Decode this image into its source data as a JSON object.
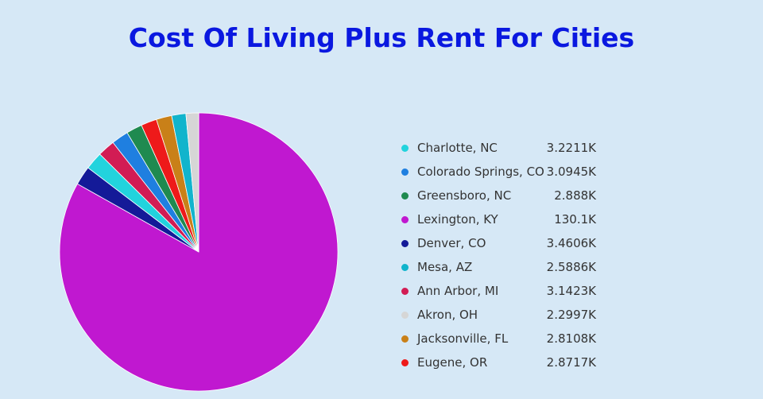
{
  "chart_data": {
    "type": "pie",
    "title": "Cost Of Living Plus Rent For Cities",
    "legend_position": "right",
    "slices": [
      {
        "label": "Charlotte, NC",
        "value": 3221.1,
        "display": "3.2211K",
        "color": "#22d3dd"
      },
      {
        "label": "Colorado Springs, CO",
        "value": 3094.5,
        "display": "3.0945K",
        "color": "#1f7fe0"
      },
      {
        "label": "Greensboro, NC",
        "value": 2888,
        "display": "2.888K",
        "color": "#1f8a50"
      },
      {
        "label": "Lexington, KY",
        "value": 130100,
        "display": "130.1K",
        "color": "#c018d0"
      },
      {
        "label": "Denver, CO",
        "value": 3460.6,
        "display": "3.4606K",
        "color": "#141a98"
      },
      {
        "label": "Mesa, AZ",
        "value": 2588.6,
        "display": "2.5886K",
        "color": "#11b4cc"
      },
      {
        "label": "Ann Arbor, MI",
        "value": 3142.3,
        "display": "3.1423K",
        "color": "#d21c54"
      },
      {
        "label": "Akron, OH",
        "value": 2299.7,
        "display": "2.2997K",
        "color": "#d6d6d6"
      },
      {
        "label": "Jacksonville, FL",
        "value": 2810.8,
        "display": "2.8108K",
        "color": "#c98018"
      },
      {
        "label": "Eugene, OR",
        "value": 2871.7,
        "display": "2.8717K",
        "color": "#ee1a1a"
      }
    ],
    "slice_order": [
      "Lexington, KY",
      "Denver, CO",
      "Charlotte, NC",
      "Ann Arbor, MI",
      "Colorado Springs, CO",
      "Greensboro, NC",
      "Eugene, OR",
      "Jacksonville, FL",
      "Mesa, AZ",
      "Akron, OH"
    ]
  }
}
